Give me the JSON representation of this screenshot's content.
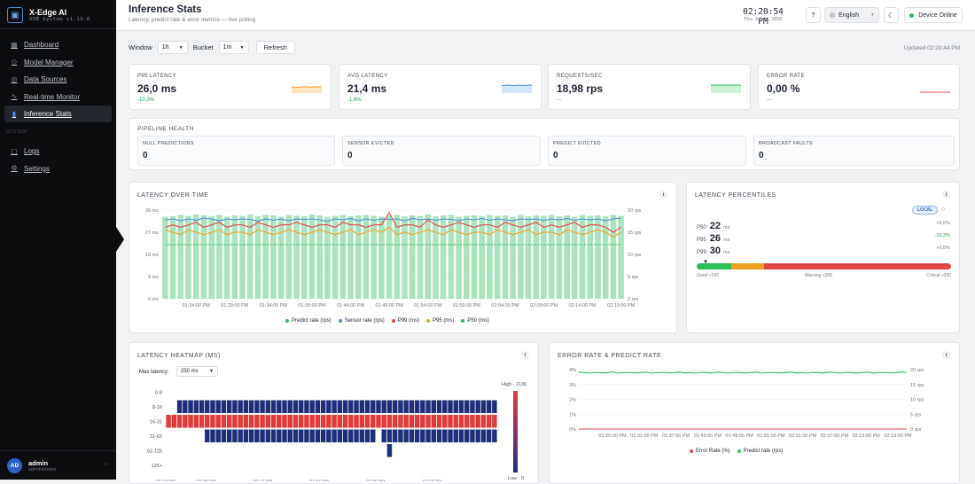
{
  "sidebar": {
    "brand_title": "X-Edge AI",
    "brand_sub": "OOB System v1.13.0",
    "items": [
      {
        "label": "Dashboard",
        "icon": "grid-icon"
      },
      {
        "label": "Model Manager",
        "icon": "cube-icon"
      },
      {
        "label": "Data Sources",
        "icon": "database-icon"
      },
      {
        "label": "Real-time Monitor",
        "icon": "activity-icon"
      },
      {
        "label": "Inference Stats",
        "icon": "bar-chart-icon",
        "active": true
      }
    ],
    "system_label": "SYSTEM",
    "system_items": [
      {
        "label": "Logs",
        "icon": "file-icon"
      },
      {
        "label": "Settings",
        "icon": "gear-icon"
      }
    ],
    "user": {
      "initials": "AD",
      "name": "admin",
      "role": "administrator"
    }
  },
  "header": {
    "title": "Inference Stats",
    "subtitle": "Latency, predict rate & error metrics — live polling",
    "time": "02:20:54 PM",
    "date": "Thu, Jun 11, 2026",
    "help": "?",
    "language": "English",
    "status": "Device Online"
  },
  "controls": {
    "window_label": "Window",
    "window_value": "1h",
    "bucket_label": "Bucket",
    "bucket_value": "1m",
    "refresh": "Refresh",
    "updated": "Updated 02:20:44 PM"
  },
  "kpis": [
    {
      "label": "P95 LATENCY",
      "value": "26,0 ms",
      "delta": "-10,3%",
      "color": "#f0a020"
    },
    {
      "label": "AVG LATENCY",
      "value": "21,4 ms",
      "delta": "-1,8%",
      "color": "#4a8fdc"
    },
    {
      "label": "REQUESTS/SEC",
      "value": "18,98 rps",
      "delta": "—",
      "color": "#2dbe5c"
    },
    {
      "label": "ERROR RATE",
      "value": "0,00 %",
      "delta": "—",
      "color": "#e04848"
    }
  ],
  "pipeline": {
    "title": "PIPELINE HEALTH",
    "items": [
      {
        "label": "NULL PREDICTIONS",
        "value": "0"
      },
      {
        "label": "SENSOR EVICTED",
        "value": "0"
      },
      {
        "label": "PREDICT EVICTED",
        "value": "0"
      },
      {
        "label": "BROADCAST FAULTS",
        "value": "0"
      }
    ]
  },
  "latency_chart": {
    "title": "LATENCY OVER TIME",
    "info": "i",
    "legend": [
      "Predict rate (rps)",
      "Sensor rate (rps)",
      "P99 (ms)",
      "P95 (ms)",
      "P50 (ms)"
    ]
  },
  "percentiles": {
    "title": "LATENCY PERCENTILES",
    "badge": "LOCAL",
    "info": "i",
    "rows": [
      {
        "label": "P50",
        "value": "22",
        "unit": "ms",
        "delta": "+0,0%"
      },
      {
        "label": "P95",
        "value": "26",
        "unit": "ms",
        "delta": "-10,3%"
      },
      {
        "label": "P99",
        "value": "30",
        "unit": "ms",
        "delta": "+0,0%"
      }
    ],
    "scale": {
      "good": "Good <100",
      "warning": "Warning <200",
      "critical": "Critical >200"
    }
  },
  "heatmap": {
    "title": "LATENCY HEATMAP (MS)",
    "info": "i",
    "max_label": "Max latency:",
    "max_value": "250 ms",
    "rows": [
      "0-8",
      "8-16",
      "16-31",
      "31-62",
      "62-125",
      "125+"
    ],
    "high_label": "High · 1136",
    "low_label": "Low · 0",
    "x_labels": [
      "01:18 PM",
      "01:30 PM",
      "01:42 PM",
      "01:54 PM",
      "02:06 PM",
      "02:18 PM"
    ]
  },
  "error_chart": {
    "title": "ERROR RATE & PREDICT RATE",
    "info": "i",
    "legend": [
      "Error Rate (%)",
      "Predict rate (rps)"
    ]
  },
  "chart_data": [
    {
      "type": "line",
      "title": "LATENCY OVER TIME",
      "x": [
        "01:20 PM",
        "01:21 PM",
        "01:22 PM",
        "01:23 PM",
        "01:24 PM",
        "01:25 PM",
        "01:26 PM",
        "01:27 PM",
        "01:28 PM",
        "01:29 PM",
        "01:30 PM",
        "01:31 PM",
        "01:32 PM",
        "01:33 PM",
        "01:34 PM",
        "01:35 PM",
        "01:36 PM",
        "01:37 PM",
        "01:38 PM",
        "01:39 PM",
        "01:40 PM",
        "01:41 PM",
        "01:42 PM",
        "01:43 PM",
        "01:44 PM",
        "01:45 PM",
        "01:46 PM",
        "01:47 PM",
        "01:48 PM",
        "01:49 PM",
        "01:50 PM",
        "01:51 PM",
        "01:52 PM",
        "01:53 PM",
        "01:54 PM",
        "01:55 PM",
        "01:56 PM",
        "01:57 PM",
        "01:58 PM",
        "01:59 PM",
        "02:00 PM",
        "02:01 PM",
        "02:02 PM",
        "02:03 PM",
        "02:04 PM",
        "02:05 PM",
        "02:06 PM",
        "02:07 PM",
        "02:08 PM",
        "02:09 PM",
        "02:10 PM",
        "02:11 PM",
        "02:12 PM",
        "02:13 PM",
        "02:14 PM",
        "02:15 PM",
        "02:16 PM",
        "02:17 PM",
        "02:18 PM",
        "02:19 PM"
      ],
      "x_tick_labels": [
        "01:24:00 PM",
        "01:29:00 PM",
        "01:34:00 PM",
        "01:39:00 PM",
        "01:44:00 PM",
        "01:49:00 PM",
        "01:54:00 PM",
        "01:59:00 PM",
        "02:04:00 PM",
        "02:09:00 PM",
        "02:14:00 PM",
        "02:19:00 PM"
      ],
      "y_left_ticks": [
        "0 ms",
        "9 ms",
        "18 ms",
        "27 ms",
        "36 ms"
      ],
      "y_right_ticks": [
        "0 rps",
        "5 rps",
        "10 rps",
        "15 rps",
        "20 rps"
      ],
      "ylim_left": [
        0,
        36
      ],
      "ylim_right": [
        0,
        20
      ],
      "series": [
        {
          "name": "Predict rate (rps)",
          "type": "bar",
          "axis": "right",
          "color": "#8fd9a5",
          "values": [
            18.5,
            18.6,
            18.9,
            18.7,
            19,
            18.8,
            18.6,
            18.9,
            18.5,
            18.8,
            18.7,
            19,
            18.6,
            18.9,
            18.8,
            18.5,
            18.9,
            18.7,
            18.6,
            19,
            18.8,
            18.5,
            18.7,
            18.9,
            18.6,
            18.8,
            18.9,
            18.7,
            18.5,
            18.8,
            18.9,
            18.6,
            18.8,
            18.7,
            19,
            18.6,
            18.8,
            18.9,
            18.5,
            18.7,
            18.8,
            18.6,
            18.9,
            18.7,
            18.8,
            18.5,
            18.9,
            18.6,
            18.8,
            18.7,
            18.9,
            18.6,
            18.8,
            18.5,
            18.9,
            18.7,
            18.8,
            18.6,
            18.9,
            18.7
          ]
        },
        {
          "name": "Sensor rate (rps)",
          "axis": "right",
          "color": "#4a8fdc",
          "values": [
            17.8,
            18,
            17.6,
            18,
            17.7,
            18.2,
            18,
            17.6,
            18,
            17.8,
            18,
            17.9,
            17.5,
            18,
            17.7,
            18,
            17.6,
            18,
            17.9,
            18,
            17.8,
            17.5,
            18,
            17.8,
            18.1,
            17.6,
            18,
            17.7,
            18,
            17.9,
            18,
            17.6,
            18.1,
            17.8,
            18,
            17.7,
            18,
            17.9,
            17.6,
            18,
            17.8,
            18.1,
            17.7,
            18,
            17.8,
            17.6,
            18,
            17.9,
            18,
            17.7,
            18,
            17.8,
            18.1,
            17.7,
            18,
            17.8,
            18,
            17.6,
            18,
            18.2
          ]
        },
        {
          "name": "P99 (ms)",
          "axis": "left",
          "color": "#e04848",
          "values": [
            29,
            30,
            29,
            30,
            31,
            29,
            30,
            31,
            29,
            30,
            30,
            29,
            31,
            30,
            29,
            30,
            30,
            31,
            30,
            29,
            30,
            30,
            29,
            31,
            30,
            30,
            29,
            30,
            30,
            35,
            29,
            30,
            30,
            29,
            32,
            30,
            29,
            30,
            31,
            30,
            29,
            30,
            30,
            29,
            31,
            30,
            29,
            30,
            31,
            29,
            30,
            29,
            30,
            31,
            29,
            30,
            30,
            29,
            27,
            29
          ]
        },
        {
          "name": "P95 (ms)",
          "axis": "left",
          "color": "#f0a020",
          "values": [
            28,
            27,
            26,
            28,
            27,
            26,
            27,
            28,
            26,
            27,
            27,
            26,
            28,
            27,
            26,
            27,
            28,
            27,
            26,
            27,
            28,
            27,
            26,
            27,
            28,
            26,
            27,
            28,
            27,
            29,
            26,
            27,
            26,
            27,
            28,
            27,
            26,
            28,
            27,
            26,
            27,
            27,
            26,
            28,
            27,
            26,
            27,
            28,
            26,
            27,
            27,
            26,
            28,
            27,
            26,
            27,
            28,
            27,
            25,
            27
          ]
        },
        {
          "name": "P50 (ms)",
          "axis": "left",
          "color": "#2dbe5c",
          "values": [
            22,
            22,
            22,
            22,
            22,
            22,
            22,
            22,
            22,
            22,
            22,
            22,
            22,
            22,
            22,
            22,
            22,
            22,
            22,
            22,
            22,
            22,
            22,
            22,
            22,
            22,
            22,
            22,
            22,
            22,
            22,
            22,
            22,
            22,
            22,
            22,
            22,
            22,
            22,
            22,
            22,
            22,
            22,
            22,
            22,
            22,
            22,
            22,
            22,
            22,
            22,
            22,
            22,
            22,
            22,
            22,
            22,
            22,
            22,
            22
          ]
        }
      ]
    },
    {
      "type": "heatmap",
      "title": "LATENCY HEATMAP (MS)",
      "rows": [
        "0-8",
        "8-16",
        "16-31",
        "31-62",
        "62-125",
        "125+"
      ],
      "columns": 60,
      "color_scale": {
        "low": "#1d2f7a",
        "high": "#e03a3a"
      },
      "high": 1136,
      "low": 0
    },
    {
      "type": "line",
      "title": "ERROR RATE & PREDICT RATE",
      "x_tick_labels": [
        "01:25:00 PM",
        "01:31:00 PM",
        "01:37:00 PM",
        "01:43:00 PM",
        "01:49:00 PM",
        "01:55:00 PM",
        "02:01:00 PM",
        "02:07:00 PM",
        "02:13:00 PM",
        "02:19:00 PM"
      ],
      "y_left_ticks": [
        "0%",
        "1%",
        "2%",
        "3%",
        "4%"
      ],
      "y_right_ticks": [
        "0 rps",
        "5 rps",
        "10 rps",
        "15 rps",
        "20 rps"
      ],
      "ylim_left": [
        0,
        4
      ],
      "ylim_right": [
        0,
        20
      ],
      "series": [
        {
          "name": "Error Rate (%)",
          "axis": "left",
          "color": "#e04848",
          "values": [
            0,
            0,
            0,
            0,
            0,
            0,
            0,
            0,
            0,
            0,
            0,
            0,
            0,
            0,
            0,
            0,
            0,
            0,
            0,
            0,
            0,
            0,
            0,
            0,
            0,
            0,
            0,
            0,
            0,
            0,
            0,
            0,
            0,
            0,
            0,
            0,
            0,
            0,
            0,
            0,
            0,
            0,
            0,
            0,
            0,
            0,
            0,
            0,
            0,
            0,
            0,
            0,
            0,
            0,
            0,
            0,
            0,
            0,
            0,
            0
          ]
        },
        {
          "name": "Predict rate (rps)",
          "axis": "right",
          "color": "#2dbe5c",
          "values": [
            19.2,
            19,
            18.8,
            19.1,
            19,
            18.9,
            19.3,
            18.8,
            19,
            19.1,
            18.9,
            19,
            19.2,
            18.8,
            19,
            19.1,
            18.9,
            19,
            19.2,
            18.9,
            19,
            18.8,
            19.1,
            19,
            18.9,
            19.2,
            19,
            18.8,
            19.1,
            19,
            18.9,
            19,
            19.2,
            18.8,
            19,
            19.1,
            18.9,
            19,
            19.2,
            18.9,
            19,
            18.8,
            19.1,
            19,
            18.9,
            19.2,
            19,
            18.8,
            19.1,
            19,
            18.9,
            19,
            19.2,
            18.8,
            19,
            19.1,
            18.9,
            19,
            19.2,
            19.1
          ]
        }
      ]
    }
  ]
}
